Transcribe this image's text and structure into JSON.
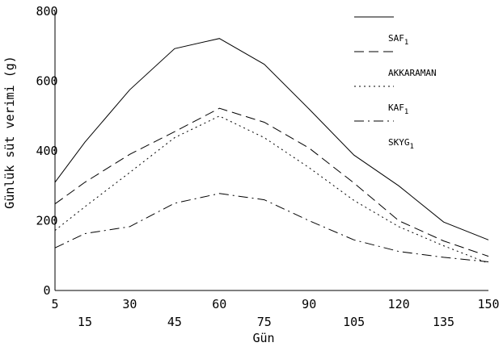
{
  "chart_data": {
    "type": "line",
    "title": "",
    "xlabel": "Gün",
    "ylabel": "Günlük süt verimi (g)",
    "x": [
      5,
      15,
      30,
      45,
      60,
      75,
      90,
      105,
      120,
      135,
      150
    ],
    "x_ticks_row1": [
      "5",
      "30",
      "60",
      "90",
      "120",
      "150"
    ],
    "x_ticks_row2": [
      "15",
      "45",
      "75",
      "105",
      "135"
    ],
    "y_ticks": [
      "0",
      "200",
      "400",
      "600",
      "800"
    ],
    "xlim": [
      5,
      150
    ],
    "ylim": [
      0,
      800
    ],
    "grid": false,
    "legend_position": "top-right",
    "series": [
      {
        "name": "SAF1",
        "dash": "solid",
        "values": [
          310,
          425,
          575,
          693,
          722,
          648,
          520,
          388,
          300,
          196,
          145
        ]
      },
      {
        "name": "AKKARAMAN",
        "dash": "dashed",
        "values": [
          248,
          310,
          390,
          455,
          522,
          482,
          408,
          308,
          200,
          142,
          98
        ]
      },
      {
        "name": "KAF1",
        "dash": "dotted",
        "values": [
          172,
          240,
          338,
          438,
          500,
          438,
          352,
          258,
          183,
          128,
          78
        ]
      },
      {
        "name": "SKYG1",
        "dash": "dashdot",
        "values": [
          122,
          163,
          183,
          250,
          278,
          260,
          200,
          145,
          112,
          95,
          82
        ]
      }
    ]
  }
}
